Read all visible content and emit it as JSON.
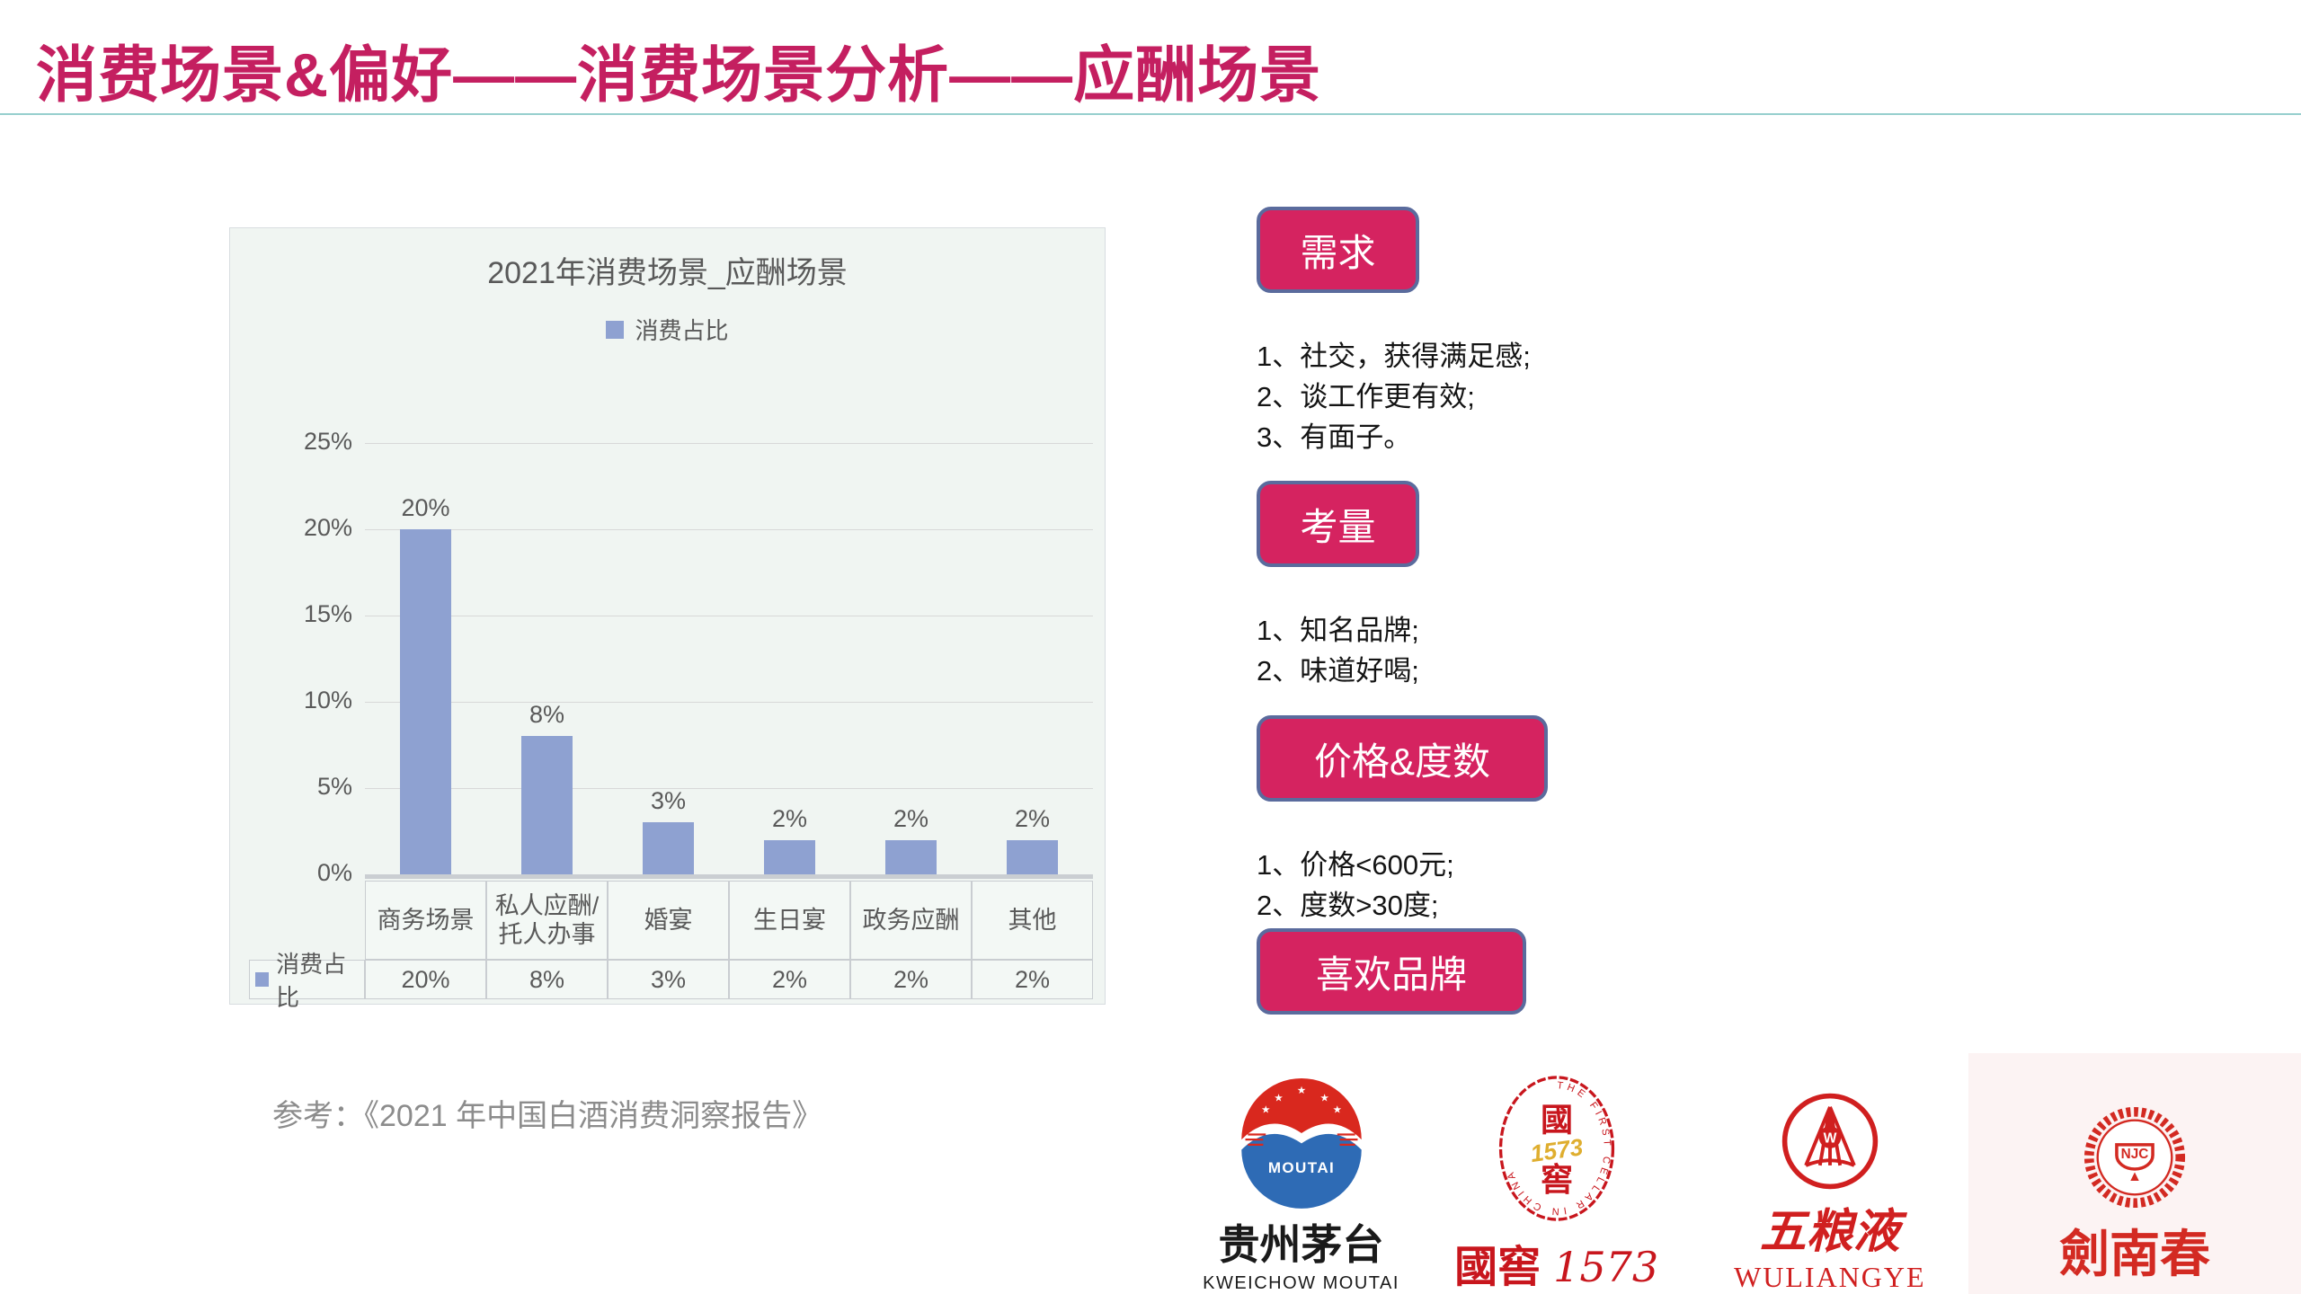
{
  "slide": {
    "title": "消费场景&偏好——消费场景分析——应酬场景",
    "accent_color": "#c41f60",
    "divider_color": "#96cfce"
  },
  "chart_data": {
    "type": "bar",
    "title": "2021年消费场景_应酬场景",
    "categories": [
      "商务场景",
      "私人应酬/\n托人办事",
      "婚宴",
      "生日宴",
      "政务应酬",
      "其他"
    ],
    "series": [
      {
        "name": "消费占比",
        "values": [
          20,
          8,
          3,
          2,
          2,
          2
        ]
      }
    ],
    "data_labels": [
      "20%",
      "8%",
      "3%",
      "2%",
      "2%",
      "2%"
    ],
    "unit": "%",
    "ylim": [
      0,
      25
    ],
    "yticks": [
      0,
      5,
      10,
      15,
      20,
      25
    ],
    "ytick_labels": [
      "0%",
      "5%",
      "10%",
      "15%",
      "20%",
      "25%"
    ],
    "grid": true,
    "legend_position": "top",
    "bar_color": "#8ea1d1",
    "table_row_label": "消费占比",
    "table_row_values": [
      "20%",
      "8%",
      "3%",
      "2%",
      "2%",
      "2%"
    ]
  },
  "reference": "参考：《2021 年中国白酒消费洞察报告》",
  "sections": [
    {
      "button": "需求",
      "items": [
        "1、社交，获得满足感;",
        "2、谈工作更有效;",
        "3、有面子。"
      ]
    },
    {
      "button": "考量",
      "items": [
        "1、知名品牌;",
        "2、味道好喝;"
      ]
    },
    {
      "button": "价格&度数",
      "items": [
        "1、价格<600元;",
        "2、度数>30度;"
      ]
    },
    {
      "button": "喜欢品牌",
      "items": []
    }
  ],
  "brands": [
    {
      "cn": "贵州茅台",
      "en": "KWEICHOW MOUTAI",
      "emblem_text": "MOUTAI"
    },
    {
      "cn": "國窖",
      "num": "1573",
      "seal_top": "國",
      "seal_num": "1573",
      "seal_bottom": "窖",
      "ring_text": "THE FIRST CELLAR IN CHINA"
    },
    {
      "cn": "五粮液",
      "en": "WULIANGYE",
      "emblem_text": "W"
    },
    {
      "cn": "劍南春",
      "emblem_text": "NJC"
    }
  ],
  "colors": {
    "bar": "#8ea1d1",
    "button_fill": "#d52360",
    "button_border": "#5a6b9d",
    "brand_red": "#d01f1f",
    "moutai_blue": "#2e6bb5",
    "guojiao_gold": "#dfae2f"
  }
}
